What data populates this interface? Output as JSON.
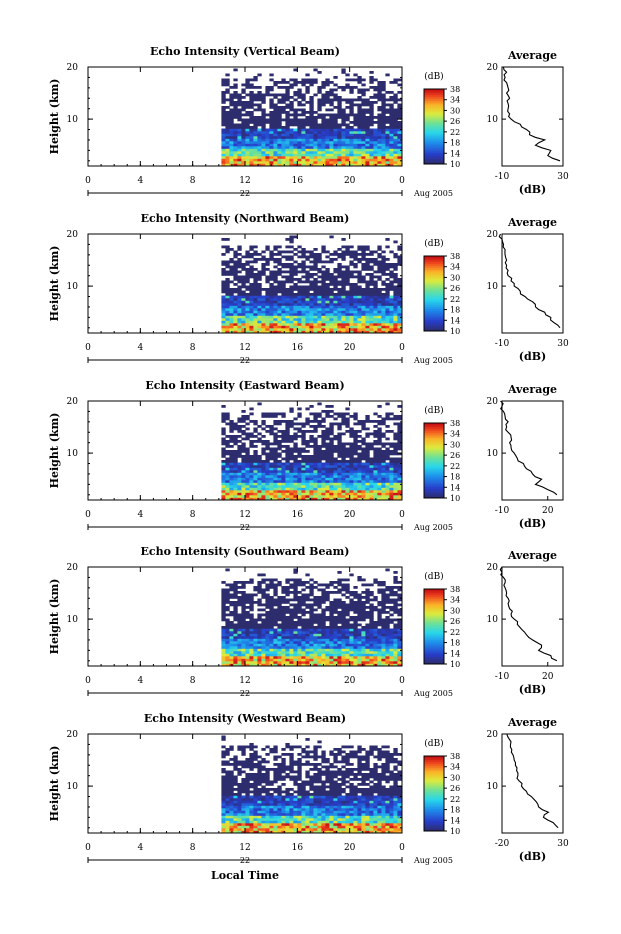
{
  "figure": {
    "xlabel": "Local Time",
    "date_label": "Aug 2005",
    "day_label": "22",
    "colorbar_unit": "(dB)",
    "colorbar_ticks": [
      "10",
      "14",
      "18",
      "22",
      "26",
      "30",
      "34",
      "38"
    ],
    "avg_title": "Average",
    "avg_xlabel": "(dB)",
    "ylabel": "Height (km)"
  },
  "chart_data": [
    {
      "type": "heatmap",
      "title": "Echo Intensity (Vertical Beam)",
      "xlabel": "Local Time",
      "ylabel": "Height (km)",
      "xlim": [
        0,
        24
      ],
      "ylim": [
        1,
        20
      ],
      "x_ticks": [
        "0",
        "4",
        "8",
        "12",
        "16",
        "20",
        "0"
      ],
      "y_ticks": [
        "20",
        "10"
      ],
      "data_start_hour": 10.2,
      "colorbar": {
        "label": "(dB)",
        "range": [
          10,
          38
        ],
        "ticks": [
          "10",
          "14",
          "18",
          "22",
          "26",
          "30",
          "34",
          "38"
        ]
      },
      "profile": {
        "title": "Average",
        "xlabel": "(dB)",
        "xlim": [
          -10,
          30
        ],
        "x_ticks": [
          "-10",
          "30"
        ],
        "y_ticks": [
          "20",
          "10"
        ],
        "heights": [
          2,
          3,
          4,
          5,
          6,
          7,
          8,
          9,
          10,
          11,
          12,
          13,
          14,
          15,
          16,
          17,
          18,
          19,
          20
        ],
        "values": [
          28,
          20,
          22,
          12,
          18,
          8,
          6,
          2,
          -4,
          -5,
          -6,
          -6,
          -5,
          -7,
          -6,
          -7,
          -8,
          -7,
          -9
        ]
      }
    },
    {
      "type": "heatmap",
      "title": "Echo Intensity (Northward Beam)",
      "xlabel": "Local Time",
      "ylabel": "Height (km)",
      "xlim": [
        0,
        24
      ],
      "ylim": [
        1,
        20
      ],
      "x_ticks": [
        "0",
        "4",
        "8",
        "12",
        "16",
        "20",
        "0"
      ],
      "y_ticks": [
        "20",
        "10"
      ],
      "data_start_hour": 10.2,
      "colorbar": {
        "label": "(dB)",
        "range": [
          10,
          38
        ],
        "ticks": [
          "10",
          "14",
          "18",
          "22",
          "26",
          "30",
          "34",
          "38"
        ]
      },
      "profile": {
        "title": "Average",
        "xlabel": "(dB)",
        "xlim": [
          -10,
          30
        ],
        "x_ticks": [
          "-10",
          "30"
        ],
        "y_ticks": [
          "20",
          "10"
        ],
        "heights": [
          2,
          3,
          4,
          5,
          6,
          7,
          8,
          9,
          10,
          11,
          12,
          13,
          14,
          15,
          16,
          17,
          18,
          19,
          20
        ],
        "values": [
          28,
          24,
          22,
          18,
          12,
          10,
          5,
          2,
          -2,
          -4,
          -6,
          -6,
          -7,
          -7,
          -8,
          -8,
          -9,
          -10,
          -11
        ]
      }
    },
    {
      "type": "heatmap",
      "title": "Echo Intensity (Eastward Beam)",
      "xlabel": "Local Time",
      "ylabel": "Height (km)",
      "xlim": [
        0,
        24
      ],
      "ylim": [
        1,
        20
      ],
      "x_ticks": [
        "0",
        "4",
        "8",
        "12",
        "16",
        "20",
        "0"
      ],
      "y_ticks": [
        "20",
        "10"
      ],
      "data_start_hour": 10.2,
      "colorbar": {
        "label": "(dB)",
        "range": [
          10,
          38
        ],
        "ticks": [
          "10",
          "14",
          "18",
          "22",
          "26",
          "30",
          "34",
          "38"
        ]
      },
      "profile": {
        "title": "Average",
        "xlabel": "(dB)",
        "xlim": [
          -10,
          30
        ],
        "x_ticks": [
          "-10",
          "20"
        ],
        "y_ticks": [
          "20",
          "10"
        ],
        "heights": [
          2,
          3,
          4,
          5,
          6,
          7,
          8,
          9,
          10,
          11,
          12,
          13,
          14,
          15,
          16,
          17,
          18,
          19,
          20
        ],
        "values": [
          26,
          20,
          12,
          16,
          10,
          6,
          4,
          0,
          -2,
          -4,
          -5,
          -4,
          -6,
          -7,
          -6,
          -8,
          -9,
          -10,
          -11
        ]
      }
    },
    {
      "type": "heatmap",
      "title": "Echo Intensity (Southward Beam)",
      "xlabel": "Local Time",
      "ylabel": "Height (km)",
      "xlim": [
        0,
        24
      ],
      "ylim": [
        1,
        20
      ],
      "x_ticks": [
        "0",
        "4",
        "8",
        "12",
        "16",
        "20",
        "0"
      ],
      "y_ticks": [
        "20",
        "10"
      ],
      "data_start_hour": 10.2,
      "colorbar": {
        "label": "(dB)",
        "range": [
          10,
          38
        ],
        "ticks": [
          "10",
          "14",
          "18",
          "22",
          "26",
          "30",
          "34",
          "38"
        ]
      },
      "profile": {
        "title": "Average",
        "xlabel": "(dB)",
        "xlim": [
          -10,
          30
        ],
        "x_ticks": [
          "-10",
          "20"
        ],
        "y_ticks": [
          "20",
          "10"
        ],
        "heights": [
          2,
          3,
          4,
          5,
          6,
          7,
          8,
          9,
          10,
          11,
          12,
          13,
          14,
          15,
          16,
          17,
          18,
          19,
          20
        ],
        "values": [
          26,
          22,
          14,
          16,
          10,
          6,
          3,
          0,
          -2,
          -4,
          -5,
          -6,
          -6,
          -7,
          -8,
          -8,
          -9,
          -10,
          -10
        ]
      }
    },
    {
      "type": "heatmap",
      "title": "Echo Intensity (Westward Beam)",
      "xlabel": "Local Time",
      "ylabel": "Height (km)",
      "xlim": [
        0,
        24
      ],
      "ylim": [
        1,
        20
      ],
      "x_ticks": [
        "0",
        "4",
        "8",
        "12",
        "16",
        "20",
        "0"
      ],
      "y_ticks": [
        "20",
        "10"
      ],
      "data_start_hour": 10.2,
      "colorbar": {
        "label": "(dB)",
        "range": [
          10,
          38
        ],
        "ticks": [
          "10",
          "14",
          "18",
          "22",
          "26",
          "30",
          "34",
          "38"
        ]
      },
      "profile": {
        "title": "Average",
        "xlabel": "(dB)",
        "xlim": [
          -20,
          30
        ],
        "x_ticks": [
          "-20",
          "30"
        ],
        "y_ticks": [
          "20",
          "10"
        ],
        "heights": [
          2,
          3,
          4,
          5,
          6,
          7,
          8,
          9,
          10,
          11,
          12,
          13,
          14,
          15,
          16,
          17,
          18,
          19,
          20
        ],
        "values": [
          26,
          22,
          14,
          18,
          10,
          8,
          4,
          0,
          -4,
          -6,
          -7,
          -8,
          -9,
          -10,
          -11,
          -12,
          -13,
          -14,
          -16
        ]
      }
    }
  ]
}
